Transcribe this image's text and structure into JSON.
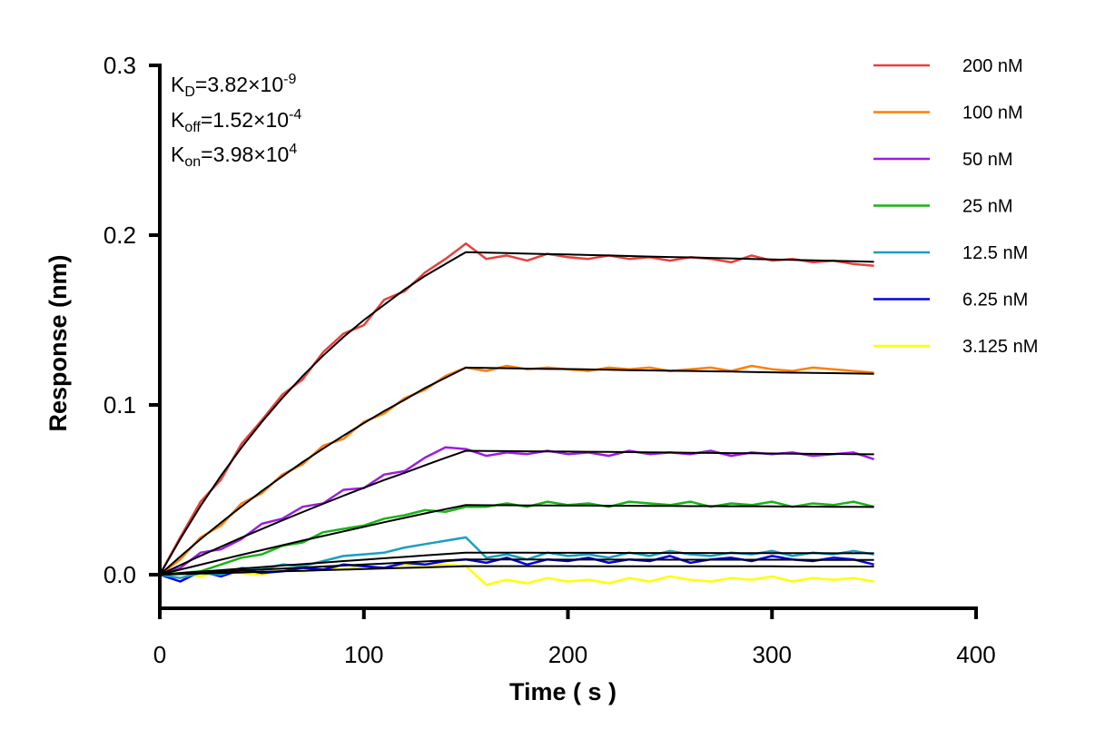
{
  "chart_data": {
    "type": "line",
    "title": "",
    "xlabel": "Time ( s )",
    "ylabel": "Response (nm)",
    "xlim": [
      0,
      400
    ],
    "ylim": [
      -0.02,
      0.3
    ],
    "xticks": [
      0,
      100,
      200,
      300,
      400
    ],
    "xtick_labels": [
      "0",
      "100",
      "200",
      "300",
      "400"
    ],
    "yticks": [
      0.0,
      0.1,
      0.2,
      0.3
    ],
    "ytick_labels": [
      "0.0",
      "0.1",
      "0.2",
      "0.3"
    ],
    "grid": false,
    "legend_position": "top-right",
    "fit_color": "#000000",
    "annotations": [
      {
        "base": "K",
        "sub": "D",
        "mid": "=3.82×10",
        "sup": "-9"
      },
      {
        "base": "K",
        "sub": "off",
        "mid": "=1.52×10",
        "sup": "-4"
      },
      {
        "base": "K",
        "sub": "on",
        "mid": "=3.98×10",
        "sup": "4"
      }
    ],
    "x": [
      0,
      10,
      20,
      30,
      40,
      50,
      60,
      70,
      80,
      90,
      100,
      110,
      120,
      130,
      140,
      150,
      160,
      170,
      180,
      190,
      200,
      210,
      220,
      230,
      240,
      250,
      260,
      270,
      280,
      290,
      300,
      310,
      320,
      330,
      340,
      350
    ],
    "series": [
      {
        "name": "200 nM",
        "color": "#e8413c",
        "values": [
          0,
          0.022,
          0.043,
          0.056,
          0.077,
          0.091,
          0.106,
          0.115,
          0.131,
          0.142,
          0.147,
          0.162,
          0.167,
          0.178,
          0.186,
          0.195,
          0.186,
          0.188,
          0.185,
          0.189,
          0.187,
          0.186,
          0.188,
          0.186,
          0.187,
          0.185,
          0.187,
          0.186,
          0.184,
          0.188,
          0.185,
          0.186,
          0.184,
          0.185,
          0.183,
          0.182
        ],
        "fit": [
          0,
          0.021,
          0.0405,
          0.0583,
          0.0748,
          0.09,
          0.104,
          0.117,
          0.129,
          0.14,
          0.15,
          0.159,
          0.168,
          0.176,
          0.183,
          0.19,
          0.1897,
          0.1894,
          0.1891,
          0.1888,
          0.1886,
          0.1883,
          0.188,
          0.1877,
          0.1874,
          0.1871,
          0.1869,
          0.1866,
          0.1863,
          0.186,
          0.1857,
          0.1854,
          0.1852,
          0.1849,
          0.1846,
          0.1843
        ]
      },
      {
        "name": "100 nM",
        "color": "#ff8000",
        "values": [
          0,
          0.009,
          0.022,
          0.029,
          0.042,
          0.048,
          0.059,
          0.065,
          0.076,
          0.08,
          0.09,
          0.095,
          0.104,
          0.109,
          0.117,
          0.122,
          0.12,
          0.123,
          0.121,
          0.122,
          0.121,
          0.12,
          0.122,
          0.121,
          0.122,
          0.12,
          0.121,
          0.122,
          0.12,
          0.123,
          0.121,
          0.12,
          0.122,
          0.121,
          0.12,
          0.119
        ],
        "fit": [
          0,
          0.0107,
          0.0209,
          0.0307,
          0.0401,
          0.0493,
          0.0579,
          0.0663,
          0.0742,
          0.0819,
          0.0893,
          0.0964,
          0.103,
          0.11,
          0.116,
          0.122,
          0.1218,
          0.1216,
          0.1214,
          0.1212,
          0.1211,
          0.1209,
          0.1207,
          0.1205,
          0.1203,
          0.1201,
          0.12,
          0.1198,
          0.1196,
          0.1194,
          0.1192,
          0.119,
          0.1189,
          0.1187,
          0.1185,
          0.1183
        ]
      },
      {
        "name": "50 nM",
        "color": "#9b1de0",
        "values": [
          0,
          0.004,
          0.013,
          0.015,
          0.021,
          0.03,
          0.033,
          0.04,
          0.042,
          0.05,
          0.051,
          0.059,
          0.061,
          0.069,
          0.075,
          0.074,
          0.07,
          0.072,
          0.071,
          0.073,
          0.071,
          0.072,
          0.07,
          0.073,
          0.071,
          0.072,
          0.071,
          0.073,
          0.07,
          0.072,
          0.071,
          0.072,
          0.07,
          0.071,
          0.072,
          0.068
        ],
        "fit": [
          0,
          0.0056,
          0.0111,
          0.0165,
          0.0218,
          0.0269,
          0.032,
          0.0369,
          0.0417,
          0.0465,
          0.0512,
          0.0558,
          0.06,
          0.0645,
          0.0688,
          0.073,
          0.0729,
          0.0728,
          0.0727,
          0.0726,
          0.0725,
          0.0724,
          0.0723,
          0.0722,
          0.0721,
          0.072,
          0.0718,
          0.0717,
          0.0716,
          0.0715,
          0.0714,
          0.0713,
          0.0712,
          0.0711,
          0.071,
          0.0709
        ]
      },
      {
        "name": "25 nM",
        "color": "#17b417",
        "values": [
          0,
          0.001,
          0.002,
          0.006,
          0.01,
          0.012,
          0.017,
          0.019,
          0.025,
          0.027,
          0.029,
          0.033,
          0.035,
          0.038,
          0.037,
          0.04,
          0.04,
          0.042,
          0.04,
          0.043,
          0.041,
          0.042,
          0.04,
          0.043,
          0.042,
          0.041,
          0.043,
          0.04,
          0.042,
          0.041,
          0.043,
          0.04,
          0.042,
          0.041,
          0.043,
          0.04
        ],
        "fit": [
          0,
          0.003,
          0.0059,
          0.0088,
          0.0117,
          0.0145,
          0.0173,
          0.0201,
          0.0228,
          0.0255,
          0.0282,
          0.0309,
          0.0335,
          0.0361,
          0.0386,
          0.041,
          0.0409,
          0.0409,
          0.0408,
          0.0408,
          0.0407,
          0.0407,
          0.0406,
          0.0406,
          0.0405,
          0.0405,
          0.0404,
          0.0404,
          0.0403,
          0.0403,
          0.0402,
          0.0401,
          0.0401,
          0.04,
          0.04,
          0.0399
        ]
      },
      {
        "name": "12.5 nM",
        "color": "#1a9fbf",
        "values": [
          0,
          -0.002,
          0.001,
          0.0,
          0.004,
          0.003,
          0.006,
          0.005,
          0.008,
          0.011,
          0.012,
          0.013,
          0.016,
          0.018,
          0.02,
          0.022,
          0.01,
          0.012,
          0.009,
          0.013,
          0.011,
          0.012,
          0.01,
          0.013,
          0.011,
          0.014,
          0.012,
          0.011,
          0.013,
          0.012,
          0.014,
          0.011,
          0.013,
          0.012,
          0.014,
          0.012
        ],
        "fit": [
          0,
          0.0009,
          0.0018,
          0.0027,
          0.0036,
          0.0045,
          0.0054,
          0.0062,
          0.0071,
          0.008,
          0.0088,
          0.0097,
          0.0105,
          0.0114,
          0.0122,
          0.013,
          0.013,
          0.013,
          0.013,
          0.0129,
          0.0129,
          0.0129,
          0.0129,
          0.0128,
          0.0128,
          0.0128,
          0.0128,
          0.0128,
          0.0127,
          0.0127,
          0.0127,
          0.0127,
          0.0127,
          0.0126,
          0.0126,
          0.0126
        ]
      },
      {
        "name": "6.25 nM",
        "color": "#0000ee",
        "values": [
          0,
          -0.004,
          0.002,
          -0.001,
          0.003,
          0.001,
          0.002,
          0.004,
          0.003,
          0.006,
          0.005,
          0.004,
          0.007,
          0.006,
          0.008,
          0.009,
          0.007,
          0.01,
          0.006,
          0.009,
          0.008,
          0.01,
          0.007,
          0.009,
          0.008,
          0.011,
          0.007,
          0.009,
          0.01,
          0.008,
          0.011,
          0.009,
          0.008,
          0.01,
          0.009,
          0.006
        ],
        "fit": [
          0,
          0.0006,
          0.0012,
          0.0018,
          0.0024,
          0.003,
          0.0036,
          0.0042,
          0.0048,
          0.0054,
          0.006,
          0.0066,
          0.0072,
          0.0078,
          0.0084,
          0.009,
          0.009,
          0.009,
          0.009,
          0.0089,
          0.0089,
          0.0089,
          0.0089,
          0.0089,
          0.0089,
          0.0088,
          0.0088,
          0.0088,
          0.0088,
          0.0088,
          0.0088,
          0.0088,
          0.0087,
          0.0087,
          0.0087,
          0.0087
        ]
      },
      {
        "name": "3.125 nM",
        "color": "#ffff00",
        "values": [
          0,
          0.001,
          -0.001,
          0.002,
          0.001,
          0.0,
          0.003,
          0.002,
          0.004,
          0.003,
          0.005,
          0.004,
          0.006,
          0.005,
          0.006,
          0.005,
          -0.006,
          -0.003,
          -0.005,
          -0.002,
          -0.004,
          -0.003,
          -0.005,
          -0.002,
          -0.004,
          -0.001,
          -0.003,
          -0.004,
          -0.002,
          -0.003,
          -0.001,
          -0.004,
          -0.002,
          -0.003,
          -0.002,
          -0.004
        ],
        "fit": [
          0,
          0.0003,
          0.0007,
          0.001,
          0.0013,
          0.0017,
          0.002,
          0.0023,
          0.0027,
          0.003,
          0.0033,
          0.0037,
          0.004,
          0.0043,
          0.0047,
          0.005,
          0.005,
          0.005,
          0.005,
          0.005,
          0.005,
          0.0049,
          0.0049,
          0.0049,
          0.0049,
          0.0049,
          0.0049,
          0.0049,
          0.0049,
          0.0049,
          0.0049,
          0.0048,
          0.0048,
          0.0048,
          0.0048,
          0.0048
        ]
      }
    ]
  }
}
